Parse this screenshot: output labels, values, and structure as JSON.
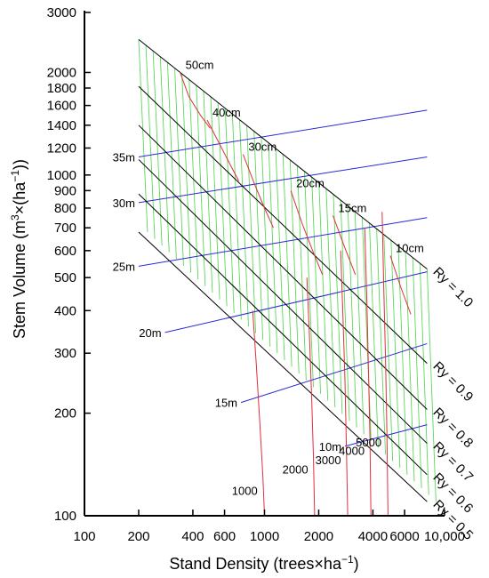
{
  "chart_data": {
    "type": "line",
    "title": "",
    "xlabel_base": "Stand Density (trees×ha",
    "xlabel_sup": "−1",
    "xlabel_tail": ")",
    "ylabel_base": "Stem Volume (m",
    "ylabel_sup1": "3",
    "ylabel_mid": "×(ha",
    "ylabel_sup2": "−1",
    "ylabel_tail": "))",
    "x_scale": "log",
    "y_scale": "log",
    "xlim": [
      100,
      10000
    ],
    "ylim": [
      100,
      3000
    ],
    "x_ticks": [
      {
        "value": 100,
        "label": "100"
      },
      {
        "value": 200,
        "label": "200"
      },
      {
        "value": 400,
        "label": "400"
      },
      {
        "value": 600,
        "label": "600"
      },
      {
        "value": 1000,
        "label": "1000"
      },
      {
        "value": 2000,
        "label": "2000"
      },
      {
        "value": 4000,
        "label": "4000"
      },
      {
        "value": 6000,
        "label": "6000"
      },
      {
        "value": 10000,
        "label": "10,000"
      }
    ],
    "y_ticks": [
      {
        "value": 100,
        "label": "100"
      },
      {
        "value": 200,
        "label": "200"
      },
      {
        "value": 300,
        "label": "300"
      },
      {
        "value": 400,
        "label": "400"
      },
      {
        "value": 500,
        "label": "500"
      },
      {
        "value": 600,
        "label": "600"
      },
      {
        "value": 700,
        "label": "700"
      },
      {
        "value": 800,
        "label": "800"
      },
      {
        "value": 900,
        "label": "900"
      },
      {
        "value": 1000,
        "label": "1000"
      },
      {
        "value": 1200,
        "label": "1200"
      },
      {
        "value": 1400,
        "label": "1400"
      },
      {
        "value": 1600,
        "label": "1600"
      },
      {
        "value": 1800,
        "label": "1800"
      },
      {
        "value": 2000,
        "label": "2000"
      },
      {
        "value": 3000,
        "label": "3000"
      }
    ],
    "grid": false,
    "colors": {
      "ry_lines": "#000000",
      "height_lines": "#2a2ad6",
      "dbh_curves": "#e0303a",
      "density_curves": "#e0303a",
      "mesh": "#5ad85a"
    },
    "ry_lines": [
      {
        "label": "Ry = 1.0",
        "ry": 1.0,
        "start": [
          200,
          2500
        ],
        "end": [
          8000,
          530
        ]
      },
      {
        "label": "Ry = 0.9",
        "ry": 0.9,
        "start": [
          200,
          1820
        ],
        "end": [
          8000,
          280
        ]
      },
      {
        "label": "Ry = 0.8",
        "ry": 0.8,
        "start": [
          200,
          1400
        ],
        "end": [
          8000,
          205
        ]
      },
      {
        "label": "Ry = 0.7",
        "ry": 0.7,
        "start": [
          200,
          1110
        ],
        "end": [
          8000,
          163
        ]
      },
      {
        "label": "Ry = 0.6",
        "ry": 0.6,
        "start": [
          200,
          880
        ],
        "end": [
          8000,
          132
        ]
      },
      {
        "label": "Ry = 0.5",
        "ry": 0.5,
        "start": [
          200,
          680
        ],
        "end": [
          8000,
          110
        ]
      }
    ],
    "height_lines": [
      {
        "label": "35m",
        "points": [
          [
            200,
            1130
          ],
          [
            8000,
            1550
          ]
        ]
      },
      {
        "label": "30m",
        "points": [
          [
            200,
            830
          ],
          [
            8000,
            1130
          ]
        ]
      },
      {
        "label": "25m",
        "points": [
          [
            200,
            540
          ],
          [
            8000,
            750
          ]
        ]
      },
      {
        "label": "20m",
        "points": [
          [
            280,
            345
          ],
          [
            8000,
            520
          ]
        ]
      },
      {
        "label": "15m",
        "points": [
          [
            740,
            215
          ],
          [
            8000,
            320
          ]
        ]
      },
      {
        "label": "10m",
        "points": [
          [
            2800,
            160
          ],
          [
            8000,
            185
          ]
        ]
      }
    ],
    "dbh_curves": [
      {
        "label": "50cm",
        "points": [
          [
            340,
            2000
          ],
          [
            380,
            1700
          ],
          [
            440,
            1500
          ],
          [
            500,
            1370
          ]
        ]
      },
      {
        "label": "40cm",
        "points": [
          [
            480,
            1450
          ],
          [
            560,
            1240
          ],
          [
            640,
            1080
          ],
          [
            720,
            960
          ]
        ]
      },
      {
        "label": "30cm",
        "points": [
          [
            760,
            1150
          ],
          [
            880,
            940
          ],
          [
            1000,
            800
          ],
          [
            1120,
            700
          ]
        ]
      },
      {
        "label": "20cm",
        "points": [
          [
            1400,
            900
          ],
          [
            1620,
            720
          ],
          [
            1850,
            600
          ],
          [
            2100,
            510
          ]
        ]
      },
      {
        "label": "15cm",
        "points": [
          [
            2400,
            760
          ],
          [
            2800,
            610
          ],
          [
            3200,
            510
          ]
        ]
      },
      {
        "label": "10cm",
        "points": [
          [
            5000,
            580
          ],
          [
            5700,
            470
          ],
          [
            6500,
            390
          ]
        ]
      }
    ],
    "density_curves": [
      {
        "label": "1000",
        "points": [
          [
            860,
            400
          ],
          [
            900,
            280
          ],
          [
            940,
            190
          ],
          [
            980,
            130
          ],
          [
            1000,
            100
          ]
        ]
      },
      {
        "label": "2000",
        "points": [
          [
            1720,
            500
          ],
          [
            1780,
            330
          ],
          [
            1830,
            220
          ],
          [
            1870,
            150
          ],
          [
            1900,
            100
          ]
        ]
      },
      {
        "label": "3000",
        "points": [
          [
            2650,
            600
          ],
          [
            2730,
            380
          ],
          [
            2800,
            250
          ],
          [
            2850,
            160
          ],
          [
            2900,
            100
          ]
        ]
      },
      {
        "label": "4000",
        "points": [
          [
            3600,
            700
          ],
          [
            3700,
            430
          ],
          [
            3780,
            270
          ],
          [
            3850,
            170
          ],
          [
            3900,
            100
          ]
        ]
      },
      {
        "label": "5000",
        "points": [
          [
            4500,
            780
          ],
          [
            4600,
            460
          ],
          [
            4700,
            290
          ],
          [
            4780,
            180
          ],
          [
            4850,
            100
          ]
        ]
      }
    ]
  }
}
